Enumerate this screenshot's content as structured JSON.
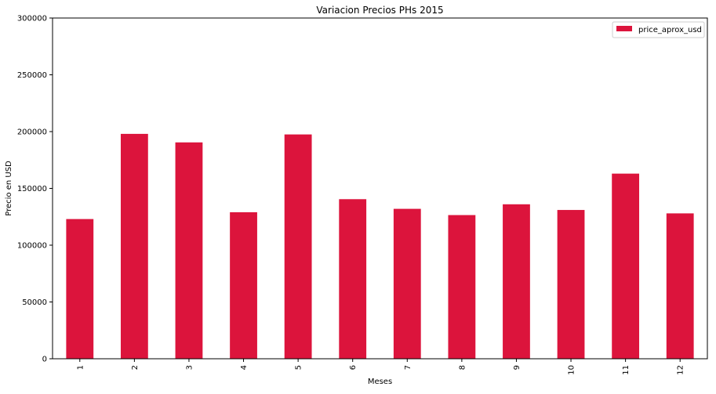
{
  "chart_data": {
    "type": "bar",
    "title": "Variacion Precios PHs 2015",
    "xlabel": "Meses",
    "ylabel": "Precio en USD",
    "categories": [
      "1",
      "2",
      "3",
      "4",
      "5",
      "6",
      "7",
      "8",
      "9",
      "10",
      "11",
      "12"
    ],
    "series": [
      {
        "name": "price_aprox_usd",
        "color": "#dc143c",
        "values": [
          123000,
          198000,
          190500,
          129000,
          197500,
          140500,
          132000,
          126500,
          136000,
          131000,
          163000,
          128000
        ]
      }
    ],
    "ylim": [
      0,
      300000
    ],
    "yticks": [
      0,
      50000,
      100000,
      150000,
      200000,
      250000,
      300000
    ],
    "ytick_labels": [
      "0",
      "50000",
      "100000",
      "150000",
      "200000",
      "250000",
      "300000"
    ],
    "grid": false,
    "legend_position": "top-right"
  }
}
